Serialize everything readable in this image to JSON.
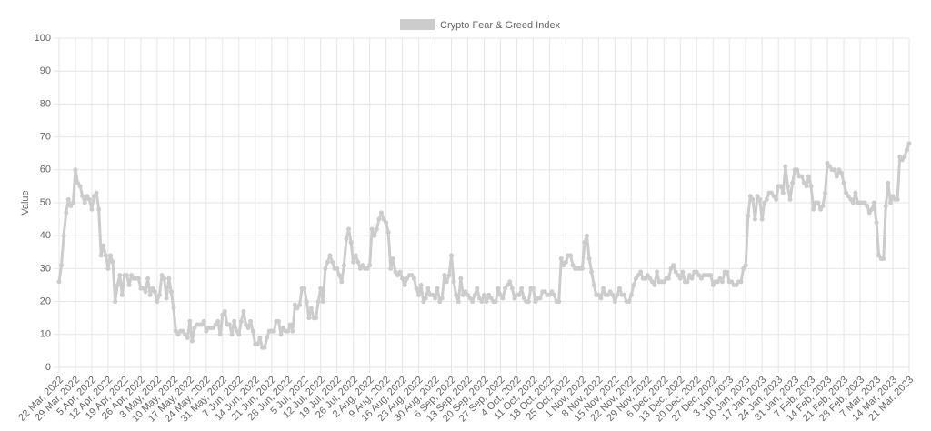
{
  "chart_data": {
    "type": "line",
    "legend": "Crypto Fear & Greed Index",
    "ylabel": "Value",
    "legend_position": "top",
    "grid": true,
    "color": "#cccccc",
    "ylim": [
      0,
      100
    ],
    "yticks": [
      0,
      10,
      20,
      30,
      40,
      50,
      60,
      70,
      80,
      90,
      100
    ],
    "categories": [
      "22 Mar, 2022",
      null,
      null,
      null,
      null,
      null,
      null,
      "29 Mar, 2022",
      null,
      null,
      null,
      null,
      null,
      null,
      "5 Apr, 2022",
      null,
      null,
      null,
      null,
      null,
      null,
      "12 Apr, 2022",
      null,
      null,
      null,
      null,
      null,
      null,
      "19 Apr, 2022",
      null,
      null,
      null,
      null,
      null,
      null,
      "26 Apr, 2022",
      null,
      null,
      null,
      null,
      null,
      null,
      "3 May, 2022",
      null,
      null,
      null,
      null,
      null,
      null,
      "10 May, 2022",
      null,
      null,
      null,
      null,
      null,
      null,
      "17 May, 2022",
      null,
      null,
      null,
      null,
      null,
      null,
      "24 May, 2022",
      null,
      null,
      null,
      null,
      null,
      null,
      "31 May, 2022",
      null,
      null,
      null,
      null,
      null,
      null,
      "7 Jun, 2022",
      null,
      null,
      null,
      null,
      null,
      null,
      "14 Jun, 2022",
      null,
      null,
      null,
      null,
      null,
      null,
      "21 Jun, 2022",
      null,
      null,
      null,
      null,
      null,
      null,
      "28 Jun, 2022",
      null,
      null,
      null,
      null,
      null,
      null,
      "5 Jul, 2022",
      null,
      null,
      null,
      null,
      null,
      null,
      "12 Jul, 2022",
      null,
      null,
      null,
      null,
      null,
      null,
      "19 Jul, 2022",
      null,
      null,
      null,
      null,
      null,
      null,
      "26 Jul, 2022",
      null,
      null,
      null,
      null,
      null,
      null,
      "2 Aug, 2022",
      null,
      null,
      null,
      null,
      null,
      null,
      "9 Aug, 2022",
      null,
      null,
      null,
      null,
      null,
      null,
      "16 Aug, 2022",
      null,
      null,
      null,
      null,
      null,
      null,
      "23 Aug, 2022",
      null,
      null,
      null,
      null,
      null,
      null,
      "30 Aug, 2022",
      null,
      null,
      null,
      null,
      null,
      null,
      "6 Sep, 2022",
      null,
      null,
      null,
      null,
      null,
      null,
      "13 Sep, 2022",
      null,
      null,
      null,
      null,
      null,
      null,
      "20 Sep, 2022",
      null,
      null,
      null,
      null,
      null,
      null,
      "27 Sep, 2022",
      null,
      null,
      null,
      null,
      null,
      null,
      "4 Oct, 2022",
      null,
      null,
      null,
      null,
      null,
      null,
      "11 Oct, 2022",
      null,
      null,
      null,
      null,
      null,
      null,
      "18 Oct, 2022",
      null,
      null,
      null,
      null,
      null,
      null,
      "25 Oct, 2022",
      null,
      null,
      null,
      null,
      null,
      null,
      "1 Nov, 2022",
      null,
      null,
      null,
      null,
      null,
      null,
      "8 Nov, 2022",
      null,
      null,
      null,
      null,
      null,
      null,
      "15 Nov, 2022",
      null,
      null,
      null,
      null,
      null,
      null,
      "22 Nov, 2022",
      null,
      null,
      null,
      null,
      null,
      null,
      "29 Nov, 2022",
      null,
      null,
      null,
      null,
      null,
      null,
      "6 Dec, 2022",
      null,
      null,
      null,
      null,
      null,
      null,
      "13 Dec, 2022",
      null,
      null,
      null,
      null,
      null,
      null,
      "20 Dec, 2022",
      null,
      null,
      null,
      null,
      null,
      null,
      "27 Dec, 2022",
      null,
      null,
      null,
      null,
      null,
      null,
      "3 Jan, 2023",
      null,
      null,
      null,
      null,
      null,
      null,
      "10 Jan, 2023",
      null,
      null,
      null,
      null,
      null,
      null,
      "17 Jan, 2023",
      null,
      null,
      null,
      null,
      null,
      null,
      "24 Jan, 2023",
      null,
      null,
      null,
      null,
      null,
      null,
      "31 Jan, 2023",
      null,
      null,
      null,
      null,
      null,
      null,
      "7 Feb, 2023",
      null,
      null,
      null,
      null,
      null,
      null,
      "14 Feb, 2023",
      null,
      null,
      null,
      null,
      null,
      null,
      "21 Feb, 2023",
      null,
      null,
      null,
      null,
      null,
      null,
      "28 Feb, 2023",
      null,
      null,
      null,
      null,
      null,
      null,
      "7 Mar, 2023",
      null,
      null,
      null,
      null,
      null,
      null,
      "14 Mar, 2023",
      null,
      null,
      null,
      null,
      null,
      null,
      "21 Mar, 2023"
    ],
    "values": [
      26,
      31,
      40,
      47,
      51,
      49,
      50,
      60,
      56,
      55,
      52,
      50,
      52,
      51,
      48,
      52,
      53,
      48,
      34,
      37,
      34,
      30,
      34,
      32,
      20,
      25,
      28,
      22,
      28,
      28,
      25,
      28,
      27,
      27,
      27,
      24,
      24,
      23,
      27,
      22,
      24,
      23,
      20,
      22,
      28,
      27,
      21,
      27,
      23,
      18,
      11,
      10,
      11,
      11,
      10,
      9,
      14,
      8,
      12,
      13,
      13,
      13,
      14,
      11,
      12,
      12,
      12,
      13,
      14,
      10,
      16,
      17,
      13,
      13,
      10,
      14,
      11,
      10,
      14,
      17,
      13,
      12,
      14,
      11,
      7,
      7,
      9,
      6,
      6,
      9,
      11,
      11,
      11,
      14,
      14,
      10,
      12,
      11,
      11,
      13,
      11,
      19,
      18,
      19,
      24,
      24,
      20,
      15,
      18,
      15,
      15,
      20,
      24,
      20,
      30,
      32,
      34,
      32,
      30,
      30,
      28,
      26,
      31,
      39,
      42,
      38,
      32,
      34,
      32,
      30,
      31,
      30,
      30,
      31,
      42,
      40,
      42,
      45,
      47,
      45,
      44,
      41,
      30,
      33,
      29,
      28,
      29,
      27,
      25,
      27,
      28,
      28,
      27,
      24,
      22,
      25,
      20,
      21,
      24,
      22,
      22,
      21,
      24,
      20,
      21,
      28,
      26,
      28,
      34,
      26,
      22,
      20,
      27,
      22,
      23,
      22,
      21,
      20,
      22,
      24,
      21,
      20,
      22,
      20,
      22,
      21,
      20,
      20,
      24,
      22,
      21,
      24,
      25,
      26,
      24,
      21,
      22,
      22,
      24,
      21,
      20,
      20,
      24,
      24,
      20,
      21,
      21,
      23,
      23,
      22,
      22,
      23,
      22,
      20,
      20,
      33,
      31,
      32,
      34,
      34,
      31,
      30,
      30,
      30,
      30,
      38,
      40,
      33,
      29,
      25,
      22,
      22,
      21,
      24,
      22,
      22,
      23,
      22,
      20,
      22,
      24,
      22,
      22,
      20,
      20,
      22,
      25,
      27,
      28,
      29,
      27,
      27,
      28,
      27,
      26,
      25,
      29,
      26,
      26,
      26,
      27,
      27,
      30,
      31,
      29,
      28,
      27,
      29,
      26,
      26,
      28,
      27,
      29,
      29,
      28,
      27,
      28,
      28,
      28,
      28,
      25,
      26,
      26,
      27,
      26,
      29,
      29,
      26,
      26,
      25,
      25,
      26,
      26,
      30,
      31,
      46,
      52,
      51,
      45,
      52,
      51,
      45,
      50,
      51,
      53,
      53,
      52,
      51,
      55,
      55,
      53,
      61,
      55,
      51,
      56,
      60,
      60,
      58,
      58,
      56,
      55,
      58,
      55,
      48,
      50,
      50,
      48,
      49,
      53,
      62,
      61,
      60,
      60,
      58,
      60,
      59,
      56,
      53,
      52,
      51,
      50,
      53,
      50,
      50,
      50,
      50,
      49,
      47,
      48,
      50,
      44,
      34,
      33,
      33,
      49,
      56,
      50,
      52,
      51,
      51,
      64,
      63,
      64,
      66,
      68
    ]
  }
}
